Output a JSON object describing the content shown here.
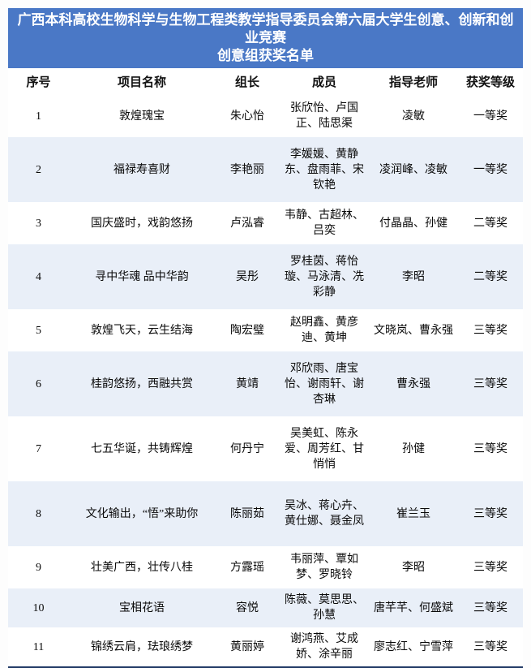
{
  "colors": {
    "title_bg": "#4A78C6",
    "title_text": "#FFFFFF",
    "band_row_bg": "#E9EFF8",
    "bottom_border": "#1F3864",
    "body_text": "#0A0A0A"
  },
  "header": {
    "title_line1": "广西本科高校生物科学与生物工程类教学指导委员会第六届大学生创意、创新和创业竞赛",
    "title_line2": "创意组获奖名单"
  },
  "table": {
    "columns": [
      "序号",
      "项目名称",
      "组长",
      "成员",
      "指导老师",
      "获奖等级"
    ],
    "rows": [
      {
        "no": "1",
        "project": "敦煌瑰宝",
        "leader": "朱心怡",
        "members": "张欣怡、卢国正、陆思渠",
        "advisors": "凌敏",
        "award": "一等奖"
      },
      {
        "no": "2",
        "project": "福禄寿喜财",
        "leader": "李艳丽",
        "members": "李媛媛、黄静东、盘雨菲、宋钦艳",
        "advisors": "凌润峰、凌敏",
        "award": "一等奖"
      },
      {
        "no": "3",
        "project": "国庆盛时，戏韵悠扬",
        "leader": "卢泓睿",
        "members": "韦静、古超林、吕奕",
        "advisors": "付晶晶、孙健",
        "award": "二等奖"
      },
      {
        "no": "4",
        "project": "寻中华魂 品中华韵",
        "leader": "吴彤",
        "members": "罗桂茵、蒋怡璇、马泳清、冼彩静",
        "advisors": "李昭",
        "award": "二等奖"
      },
      {
        "no": "5",
        "project": "敦煌飞天，云生结海",
        "leader": "陶宏璧",
        "members": "赵明鑫、黄彦迪、黄坤",
        "advisors": "文晓岚、曹永强",
        "award": "三等奖"
      },
      {
        "no": "6",
        "project": "桂韵悠扬，西融共赏",
        "leader": "黄靖",
        "members": "邓欣雨、唐宝怡、谢雨轩、谢杏琳",
        "advisors": "曹永强",
        "award": "三等奖"
      },
      {
        "no": "7",
        "project": "七五华诞，共铸辉煌",
        "leader": "何丹宁",
        "members": "吴美虹、陈永爱、周芳红、甘悄悄",
        "advisors": "孙健",
        "award": "三等奖"
      },
      {
        "no": "8",
        "project": "文化输出，“悟”来助你",
        "leader": "陈丽茹",
        "members": "吴冰、蒋心卉、黄仕娜、聂金凤",
        "advisors": "崔兰玉",
        "award": "三等奖"
      },
      {
        "no": "9",
        "project": "壮美广西，壮传八桂",
        "leader": "方露瑶",
        "members": "韦丽萍、覃如梦、罗晓铃",
        "advisors": "李昭",
        "award": "三等奖"
      },
      {
        "no": "10",
        "project": "宝相花语",
        "leader": "容悦",
        "members": "陈薇、莫思思、孙慧",
        "advisors": "唐芊芊、何盛斌",
        "award": "三等奖"
      },
      {
        "no": "11",
        "project": "锦绣云肩，珐琅绣梦",
        "leader": "黄丽婷",
        "members": "谢鸿燕、艾成娇、涂辛丽",
        "advisors": "廖志红、宁雪萍",
        "award": "三等奖"
      }
    ]
  }
}
